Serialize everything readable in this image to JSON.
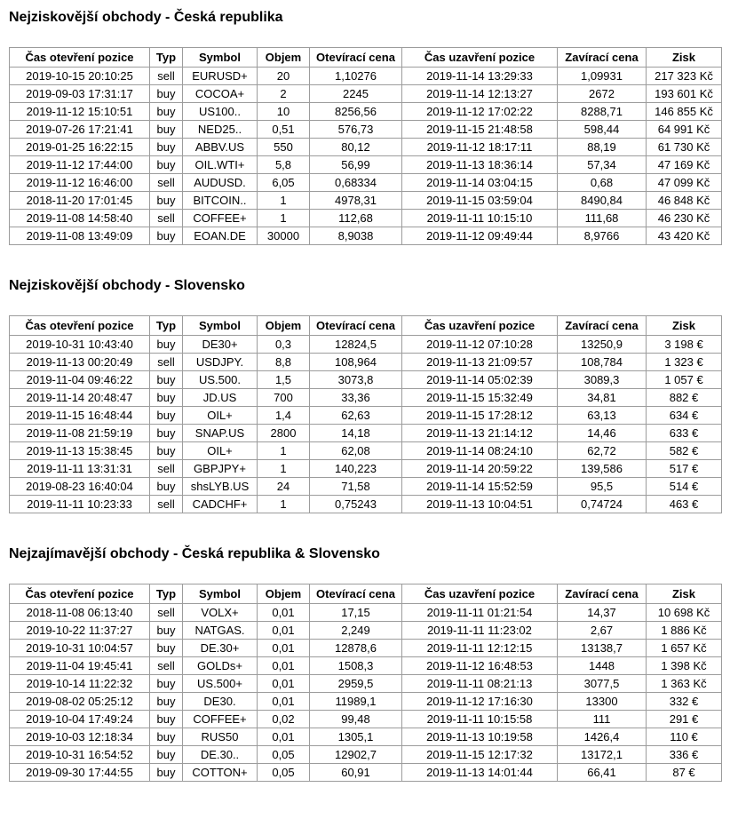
{
  "page": {
    "background_color": "#ffffff",
    "text_color": "#000000",
    "table_border_color": "#9c9c9c"
  },
  "columns": [
    "Čas otevření pozice",
    "Typ",
    "Symbol",
    "Objem",
    "Otevírací cena",
    "Čas uzavření pozice",
    "Zavírací cena",
    "Zisk"
  ],
  "tables": [
    {
      "title": "Nejziskovější obchody - Česká republika",
      "currency": "Kč",
      "rows": [
        [
          "2019-10-15 20:10:25",
          "sell",
          "EURUSD+",
          "20",
          "1,10276",
          "2019-11-14 13:29:33",
          "1,09931",
          "217 323 Kč"
        ],
        [
          "2019-09-03 17:31:17",
          "buy",
          "COCOA+",
          "2",
          "2245",
          "2019-11-14 12:13:27",
          "2672",
          "193 601 Kč"
        ],
        [
          "2019-11-12 15:10:51",
          "buy",
          "US100..",
          "10",
          "8256,56",
          "2019-11-12 17:02:22",
          "8288,71",
          "146 855 Kč"
        ],
        [
          "2019-07-26 17:21:41",
          "buy",
          "NED25..",
          "0,51",
          "576,73",
          "2019-11-15 21:48:58",
          "598,44",
          "64 991 Kč"
        ],
        [
          "2019-01-25 16:22:15",
          "buy",
          "ABBV.US",
          "550",
          "80,12",
          "2019-11-12 18:17:11",
          "88,19",
          "61 730 Kč"
        ],
        [
          "2019-11-12 17:44:00",
          "buy",
          "OIL.WTI+",
          "5,8",
          "56,99",
          "2019-11-13 18:36:14",
          "57,34",
          "47 169 Kč"
        ],
        [
          "2019-11-12 16:46:00",
          "sell",
          "AUDUSD.",
          "6,05",
          "0,68334",
          "2019-11-14 03:04:15",
          "0,68",
          "47 099 Kč"
        ],
        [
          "2018-11-20 17:01:45",
          "buy",
          "BITCOIN..",
          "1",
          "4978,31",
          "2019-11-15 03:59:04",
          "8490,84",
          "46 848 Kč"
        ],
        [
          "2019-11-08 14:58:40",
          "sell",
          "COFFEE+",
          "1",
          "112,68",
          "2019-11-11 10:15:10",
          "111,68",
          "46 230 Kč"
        ],
        [
          "2019-11-08 13:49:09",
          "buy",
          "EOAN.DE",
          "30000",
          "8,9038",
          "2019-11-12 09:49:44",
          "8,9766",
          "43 420 Kč"
        ]
      ]
    },
    {
      "title": "Nejziskovější obchody - Slovensko",
      "currency": "€",
      "rows": [
        [
          "2019-10-31 10:43:40",
          "buy",
          "DE30+",
          "0,3",
          "12824,5",
          "2019-11-12 07:10:28",
          "13250,9",
          "3 198 €"
        ],
        [
          "2019-11-13 00:20:49",
          "sell",
          "USDJPY.",
          "8,8",
          "108,964",
          "2019-11-13 21:09:57",
          "108,784",
          "1 323 €"
        ],
        [
          "2019-11-04 09:46:22",
          "buy",
          "US.500.",
          "1,5",
          "3073,8",
          "2019-11-14 05:02:39",
          "3089,3",
          "1 057 €"
        ],
        [
          "2019-11-14 20:48:47",
          "buy",
          "JD.US",
          "700",
          "33,36",
          "2019-11-15 15:32:49",
          "34,81",
          "882 €"
        ],
        [
          "2019-11-15 16:48:44",
          "buy",
          "OIL+",
          "1,4",
          "62,63",
          "2019-11-15 17:28:12",
          "63,13",
          "634 €"
        ],
        [
          "2019-11-08 21:59:19",
          "buy",
          "SNAP.US",
          "2800",
          "14,18",
          "2019-11-13 21:14:12",
          "14,46",
          "633 €"
        ],
        [
          "2019-11-13 15:38:45",
          "buy",
          "OIL+",
          "1",
          "62,08",
          "2019-11-14 08:24:10",
          "62,72",
          "582 €"
        ],
        [
          "2019-11-11 13:31:31",
          "sell",
          "GBPJPY+",
          "1",
          "140,223",
          "2019-11-14 20:59:22",
          "139,586",
          "517 €"
        ],
        [
          "2019-08-23 16:40:04",
          "buy",
          "shsLYB.US",
          "24",
          "71,58",
          "2019-11-14 15:52:59",
          "95,5",
          "514 €"
        ],
        [
          "2019-11-11 10:23:33",
          "sell",
          "CADCHF+",
          "1",
          "0,75243",
          "2019-11-13 10:04:51",
          "0,74724",
          "463 €"
        ]
      ]
    },
    {
      "title": "Nejzajímavější obchody - Česká republika & Slovensko",
      "currency": "Kč / €",
      "rows": [
        [
          "2018-11-08 06:13:40",
          "sell",
          "VOLX+",
          "0,01",
          "17,15",
          "2019-11-11 01:21:54",
          "14,37",
          "10 698 Kč"
        ],
        [
          "2019-10-22 11:37:27",
          "buy",
          "NATGAS.",
          "0,01",
          "2,249",
          "2019-11-11 11:23:02",
          "2,67",
          "1 886 Kč"
        ],
        [
          "2019-10-31 10:04:57",
          "buy",
          "DE.30+",
          "0,01",
          "12878,6",
          "2019-11-11 12:12:15",
          "13138,7",
          "1 657 Kč"
        ],
        [
          "2019-11-04 19:45:41",
          "sell",
          "GOLDs+",
          "0,01",
          "1508,3",
          "2019-11-12 16:48:53",
          "1448",
          "1 398 Kč"
        ],
        [
          "2019-10-14 11:22:32",
          "buy",
          "US.500+",
          "0,01",
          "2959,5",
          "2019-11-11 08:21:13",
          "3077,5",
          "1 363 Kč"
        ],
        [
          "2019-08-02 05:25:12",
          "buy",
          "DE30.",
          "0,01",
          "11989,1",
          "2019-11-12 17:16:30",
          "13300",
          "332 €"
        ],
        [
          "2019-10-04 17:49:24",
          "buy",
          "COFFEE+",
          "0,02",
          "99,48",
          "2019-11-11 10:15:58",
          "111",
          "291 €"
        ],
        [
          "2019-10-03 12:18:34",
          "buy",
          "RUS50",
          "0,01",
          "1305,1",
          "2019-11-13 10:19:58",
          "1426,4",
          "110 €"
        ],
        [
          "2019-10-31 16:54:52",
          "buy",
          "DE.30..",
          "0,05",
          "12902,7",
          "2019-11-15 12:17:32",
          "13172,1",
          "336 €"
        ],
        [
          "2019-09-30 17:44:55",
          "buy",
          "COTTON+",
          "0,05",
          "60,91",
          "2019-11-13 14:01:44",
          "66,41",
          "87 €"
        ]
      ]
    }
  ]
}
